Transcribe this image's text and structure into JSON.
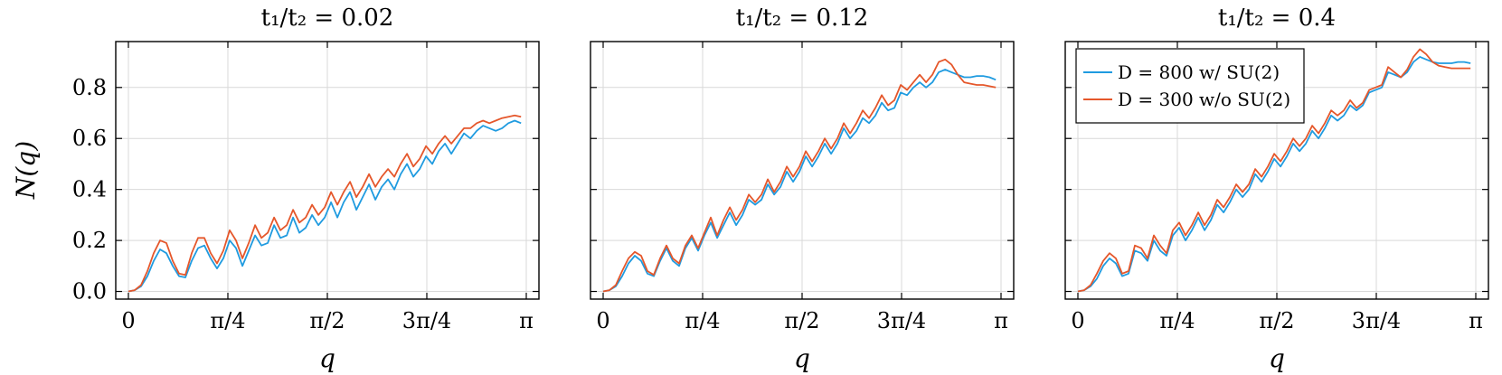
{
  "chart_data": {
    "type": "line",
    "ylabel": "N(q)",
    "xlabel": "q",
    "xlim": [
      0,
      3.1416
    ],
    "ylim": [
      -0.03,
      0.98
    ],
    "grid": true,
    "legend_position": "top-left of third panel",
    "x_ticks": [
      {
        "value": 0,
        "label": "0"
      },
      {
        "value": 0.7854,
        "label": "π/4"
      },
      {
        "value": 1.5708,
        "label": "π/2"
      },
      {
        "value": 2.3562,
        "label": "3π/4"
      },
      {
        "value": 3.1416,
        "label": "π"
      }
    ],
    "y_ticks": [
      {
        "value": 0.0,
        "label": "0.0"
      },
      {
        "value": 0.2,
        "label": "0.2"
      },
      {
        "value": 0.4,
        "label": "0.4"
      },
      {
        "value": 0.6,
        "label": "0.6"
      },
      {
        "value": 0.8,
        "label": "0.8"
      }
    ],
    "series_legend": [
      {
        "name": "D = 800 w/ SU(2)",
        "color": "#1f9be0"
      },
      {
        "name": "D = 300 w/o SU(2)",
        "color": "#e5572b"
      }
    ],
    "panels": [
      {
        "title": "t₁/t₂ = 0.02",
        "series": [
          {
            "name": "D = 800 w/ SU(2)",
            "color": "#1f9be0",
            "x": [
              0,
              0.05,
              0.1,
              0.15,
              0.2,
              0.25,
              0.3,
              0.35,
              0.4,
              0.45,
              0.5,
              0.55,
              0.6,
              0.65,
              0.7,
              0.75,
              0.8,
              0.85,
              0.9,
              0.95,
              1.0,
              1.05,
              1.1,
              1.15,
              1.2,
              1.25,
              1.3,
              1.35,
              1.4,
              1.45,
              1.5,
              1.55,
              1.6,
              1.65,
              1.7,
              1.75,
              1.8,
              1.85,
              1.9,
              1.95,
              2.0,
              2.05,
              2.1,
              2.15,
              2.2,
              2.25,
              2.3,
              2.35,
              2.4,
              2.45,
              2.5,
              2.55,
              2.6,
              2.65,
              2.7,
              2.75,
              2.8,
              2.85,
              2.9,
              2.95,
              3.0,
              3.05,
              3.1
            ],
            "y": [
              0.0,
              0.005,
              0.02,
              0.06,
              0.12,
              0.165,
              0.15,
              0.1,
              0.06,
              0.055,
              0.12,
              0.17,
              0.18,
              0.13,
              0.09,
              0.13,
              0.2,
              0.17,
              0.1,
              0.16,
              0.22,
              0.18,
              0.19,
              0.26,
              0.21,
              0.22,
              0.29,
              0.23,
              0.25,
              0.3,
              0.26,
              0.29,
              0.35,
              0.29,
              0.35,
              0.39,
              0.32,
              0.37,
              0.42,
              0.36,
              0.41,
              0.44,
              0.4,
              0.46,
              0.5,
              0.45,
              0.48,
              0.53,
              0.5,
              0.55,
              0.58,
              0.54,
              0.58,
              0.62,
              0.6,
              0.63,
              0.65,
              0.64,
              0.63,
              0.64,
              0.66,
              0.67,
              0.66
            ]
          },
          {
            "name": "D = 300 w/o SU(2)",
            "color": "#e5572b",
            "x": [
              0,
              0.05,
              0.1,
              0.15,
              0.2,
              0.25,
              0.3,
              0.35,
              0.4,
              0.45,
              0.5,
              0.55,
              0.6,
              0.65,
              0.7,
              0.75,
              0.8,
              0.85,
              0.9,
              0.95,
              1.0,
              1.05,
              1.1,
              1.15,
              1.2,
              1.25,
              1.3,
              1.35,
              1.4,
              1.45,
              1.5,
              1.55,
              1.6,
              1.65,
              1.7,
              1.75,
              1.8,
              1.85,
              1.9,
              1.95,
              2.0,
              2.05,
              2.1,
              2.15,
              2.2,
              2.25,
              2.3,
              2.35,
              2.4,
              2.45,
              2.5,
              2.55,
              2.6,
              2.65,
              2.7,
              2.75,
              2.8,
              2.85,
              2.9,
              2.95,
              3.0,
              3.05,
              3.1
            ],
            "y": [
              0.0,
              0.005,
              0.025,
              0.08,
              0.15,
              0.2,
              0.19,
              0.12,
              0.07,
              0.065,
              0.15,
              0.21,
              0.21,
              0.15,
              0.11,
              0.16,
              0.24,
              0.2,
              0.13,
              0.19,
              0.26,
              0.21,
              0.23,
              0.29,
              0.24,
              0.26,
              0.32,
              0.27,
              0.29,
              0.34,
              0.3,
              0.33,
              0.39,
              0.34,
              0.39,
              0.43,
              0.37,
              0.41,
              0.46,
              0.41,
              0.45,
              0.48,
              0.45,
              0.5,
              0.54,
              0.49,
              0.52,
              0.57,
              0.54,
              0.58,
              0.61,
              0.58,
              0.61,
              0.64,
              0.64,
              0.66,
              0.67,
              0.66,
              0.67,
              0.68,
              0.685,
              0.69,
              0.685
            ]
          }
        ]
      },
      {
        "title": "t₁/t₂ = 0.12",
        "series": [
          {
            "name": "D = 800 w/ SU(2)",
            "color": "#1f9be0",
            "x": [
              0,
              0.05,
              0.1,
              0.15,
              0.2,
              0.25,
              0.3,
              0.35,
              0.4,
              0.45,
              0.5,
              0.55,
              0.6,
              0.65,
              0.7,
              0.75,
              0.8,
              0.85,
              0.9,
              0.95,
              1.0,
              1.05,
              1.1,
              1.15,
              1.2,
              1.25,
              1.3,
              1.35,
              1.4,
              1.45,
              1.5,
              1.55,
              1.6,
              1.65,
              1.7,
              1.75,
              1.8,
              1.85,
              1.9,
              1.95,
              2.0,
              2.05,
              2.1,
              2.15,
              2.2,
              2.25,
              2.3,
              2.35,
              2.4,
              2.45,
              2.5,
              2.55,
              2.6,
              2.65,
              2.7,
              2.75,
              2.8,
              2.85,
              2.9,
              2.95,
              3.0,
              3.05,
              3.1
            ],
            "y": [
              0.0,
              0.005,
              0.02,
              0.06,
              0.11,
              0.14,
              0.12,
              0.07,
              0.06,
              0.12,
              0.17,
              0.12,
              0.1,
              0.17,
              0.21,
              0.16,
              0.22,
              0.27,
              0.21,
              0.26,
              0.31,
              0.26,
              0.3,
              0.36,
              0.34,
              0.36,
              0.42,
              0.38,
              0.41,
              0.47,
              0.43,
              0.47,
              0.53,
              0.49,
              0.53,
              0.58,
              0.54,
              0.58,
              0.64,
              0.6,
              0.63,
              0.68,
              0.66,
              0.69,
              0.74,
              0.71,
              0.72,
              0.78,
              0.77,
              0.8,
              0.82,
              0.8,
              0.82,
              0.86,
              0.87,
              0.86,
              0.85,
              0.84,
              0.84,
              0.845,
              0.845,
              0.84,
              0.83
            ]
          },
          {
            "name": "D = 300 w/o SU(2)",
            "color": "#e5572b",
            "x": [
              0,
              0.05,
              0.1,
              0.15,
              0.2,
              0.25,
              0.3,
              0.35,
              0.4,
              0.45,
              0.5,
              0.55,
              0.6,
              0.65,
              0.7,
              0.75,
              0.8,
              0.85,
              0.9,
              0.95,
              1.0,
              1.05,
              1.1,
              1.15,
              1.2,
              1.25,
              1.3,
              1.35,
              1.4,
              1.45,
              1.5,
              1.55,
              1.6,
              1.65,
              1.7,
              1.75,
              1.8,
              1.85,
              1.9,
              1.95,
              2.0,
              2.05,
              2.1,
              2.15,
              2.2,
              2.25,
              2.3,
              2.35,
              2.4,
              2.45,
              2.5,
              2.55,
              2.6,
              2.65,
              2.7,
              2.75,
              2.8,
              2.85,
              2.9,
              2.95,
              3.0,
              3.05,
              3.1
            ],
            "y": [
              0.0,
              0.005,
              0.025,
              0.08,
              0.13,
              0.155,
              0.14,
              0.08,
              0.065,
              0.13,
              0.18,
              0.13,
              0.11,
              0.18,
              0.22,
              0.17,
              0.23,
              0.29,
              0.22,
              0.28,
              0.33,
              0.28,
              0.32,
              0.38,
              0.35,
              0.38,
              0.44,
              0.39,
              0.43,
              0.49,
              0.45,
              0.49,
              0.55,
              0.51,
              0.55,
              0.6,
              0.56,
              0.6,
              0.66,
              0.62,
              0.66,
              0.71,
              0.68,
              0.72,
              0.77,
              0.73,
              0.75,
              0.81,
              0.79,
              0.82,
              0.85,
              0.82,
              0.85,
              0.9,
              0.91,
              0.89,
              0.85,
              0.82,
              0.815,
              0.81,
              0.81,
              0.805,
              0.8
            ]
          }
        ]
      },
      {
        "title": "t₁/t₂ = 0.4",
        "series": [
          {
            "name": "D = 800 w/ SU(2)",
            "color": "#1f9be0",
            "x": [
              0,
              0.05,
              0.1,
              0.15,
              0.2,
              0.25,
              0.3,
              0.35,
              0.4,
              0.45,
              0.5,
              0.55,
              0.6,
              0.65,
              0.7,
              0.75,
              0.8,
              0.85,
              0.9,
              0.95,
              1.0,
              1.05,
              1.1,
              1.15,
              1.2,
              1.25,
              1.3,
              1.35,
              1.4,
              1.45,
              1.5,
              1.55,
              1.6,
              1.65,
              1.7,
              1.75,
              1.8,
              1.85,
              1.9,
              1.95,
              2.0,
              2.05,
              2.1,
              2.15,
              2.2,
              2.25,
              2.3,
              2.35,
              2.4,
              2.45,
              2.5,
              2.55,
              2.6,
              2.65,
              2.7,
              2.75,
              2.8,
              2.85,
              2.9,
              2.95,
              3.0,
              3.05,
              3.1
            ],
            "y": [
              0.0,
              0.005,
              0.02,
              0.05,
              0.1,
              0.13,
              0.11,
              0.06,
              0.07,
              0.16,
              0.15,
              0.12,
              0.2,
              0.16,
              0.14,
              0.22,
              0.25,
              0.2,
              0.24,
              0.29,
              0.24,
              0.28,
              0.34,
              0.31,
              0.35,
              0.4,
              0.37,
              0.4,
              0.46,
              0.43,
              0.47,
              0.52,
              0.49,
              0.53,
              0.58,
              0.55,
              0.58,
              0.63,
              0.6,
              0.64,
              0.69,
              0.67,
              0.69,
              0.73,
              0.71,
              0.73,
              0.78,
              0.79,
              0.8,
              0.86,
              0.85,
              0.84,
              0.86,
              0.9,
              0.92,
              0.91,
              0.9,
              0.895,
              0.895,
              0.895,
              0.9,
              0.9,
              0.895
            ]
          },
          {
            "name": "D = 300 w/o SU(2)",
            "color": "#e5572b",
            "x": [
              0,
              0.05,
              0.1,
              0.15,
              0.2,
              0.25,
              0.3,
              0.35,
              0.4,
              0.45,
              0.5,
              0.55,
              0.6,
              0.65,
              0.7,
              0.75,
              0.8,
              0.85,
              0.9,
              0.95,
              1.0,
              1.05,
              1.1,
              1.15,
              1.2,
              1.25,
              1.3,
              1.35,
              1.4,
              1.45,
              1.5,
              1.55,
              1.6,
              1.65,
              1.7,
              1.75,
              1.8,
              1.85,
              1.9,
              1.95,
              2.0,
              2.05,
              2.1,
              2.15,
              2.2,
              2.25,
              2.3,
              2.35,
              2.4,
              2.45,
              2.5,
              2.55,
              2.6,
              2.65,
              2.7,
              2.75,
              2.8,
              2.85,
              2.9,
              2.95,
              3.0,
              3.05,
              3.1
            ],
            "y": [
              0.0,
              0.005,
              0.025,
              0.07,
              0.12,
              0.15,
              0.13,
              0.07,
              0.08,
              0.18,
              0.17,
              0.13,
              0.22,
              0.18,
              0.15,
              0.24,
              0.27,
              0.22,
              0.26,
              0.31,
              0.26,
              0.3,
              0.36,
              0.33,
              0.37,
              0.42,
              0.39,
              0.42,
              0.48,
              0.45,
              0.49,
              0.54,
              0.51,
              0.55,
              0.6,
              0.57,
              0.6,
              0.65,
              0.62,
              0.66,
              0.71,
              0.69,
              0.71,
              0.75,
              0.72,
              0.74,
              0.79,
              0.8,
              0.81,
              0.88,
              0.86,
              0.84,
              0.87,
              0.92,
              0.95,
              0.93,
              0.9,
              0.885,
              0.88,
              0.875,
              0.875,
              0.875,
              0.875
            ]
          }
        ]
      }
    ]
  }
}
